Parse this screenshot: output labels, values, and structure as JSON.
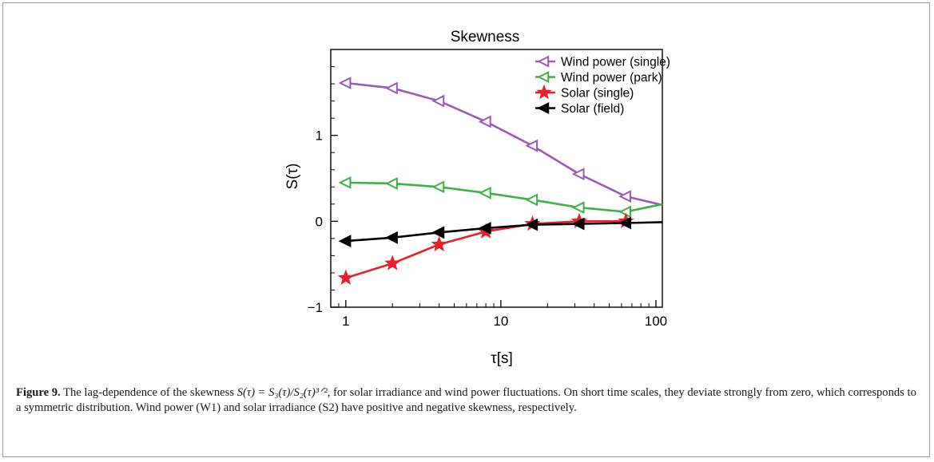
{
  "chart_data": {
    "type": "line",
    "title": "Skewness",
    "xlabel": "τ[s]",
    "ylabel": "S(τ)",
    "x_scale": "log",
    "xlim": [
      0.8,
      110
    ],
    "ylim": [
      -1,
      2.0
    ],
    "x_ticks": [
      1,
      10,
      100
    ],
    "x_tick_labels": [
      "1",
      "10",
      "100"
    ],
    "y_ticks": [
      -1,
      0,
      1
    ],
    "y_tick_labels": [
      "−1",
      "0",
      "1"
    ],
    "grid": false,
    "legend_position": "top-right",
    "x": [
      1,
      2,
      4,
      8,
      16,
      32,
      64,
      110
    ],
    "series": [
      {
        "name": "Wind power (single)",
        "color": "#9b59b6",
        "marker": "open-triangle-left",
        "values": [
          1.61,
          1.55,
          1.4,
          1.16,
          0.88,
          0.55,
          0.29,
          0.19
        ]
      },
      {
        "name": "Wind power (park)",
        "color": "#3cb043",
        "marker": "open-triangle-left",
        "values": [
          0.45,
          0.44,
          0.4,
          0.33,
          0.25,
          0.16,
          0.11,
          0.2
        ]
      },
      {
        "name": "Solar (single)",
        "color": "#e8202a",
        "marker": "star",
        "values": [
          -0.66,
          -0.49,
          -0.27,
          -0.12,
          -0.03,
          0.0,
          0.0,
          null
        ]
      },
      {
        "name": "Solar (field)",
        "color": "#000000",
        "marker": "filled-triangle-left",
        "values": [
          -0.23,
          -0.19,
          -0.13,
          -0.08,
          -0.04,
          -0.03,
          -0.02,
          -0.01
        ]
      }
    ]
  },
  "caption": {
    "label": "Figure 9.",
    "text_1": "The lag-dependence of the skewness",
    "formula": "S(τ) = S₃(τ)/S₂(τ)³ᐟ²",
    "text_2": ", for solar irradiance and wind power fluctuations. On short time scales, they deviate strongly from zero, which corresponds to a symmetric distribution. Wind power (W1) and solar irradiance (S2) have positive and negative skewness, respectively."
  }
}
